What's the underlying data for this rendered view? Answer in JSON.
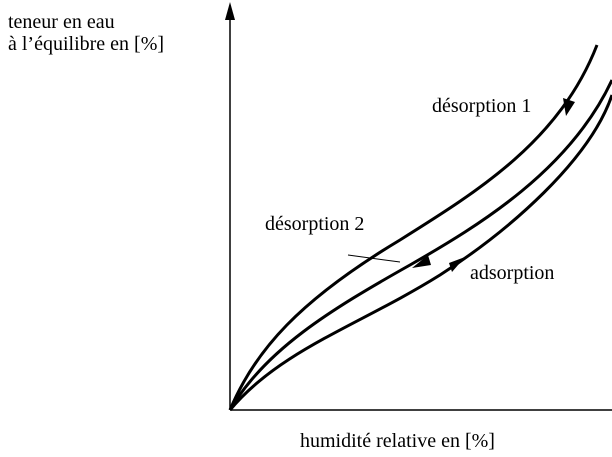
{
  "axes": {
    "y_label": [
      "teneur en eau",
      "à l’équilibre en [%]"
    ],
    "x_label": "humidité relative en [%]"
  },
  "curves": [
    {
      "label": "désorption 1"
    },
    {
      "label": "désorption 2"
    },
    {
      "label": "adsorption"
    }
  ]
}
